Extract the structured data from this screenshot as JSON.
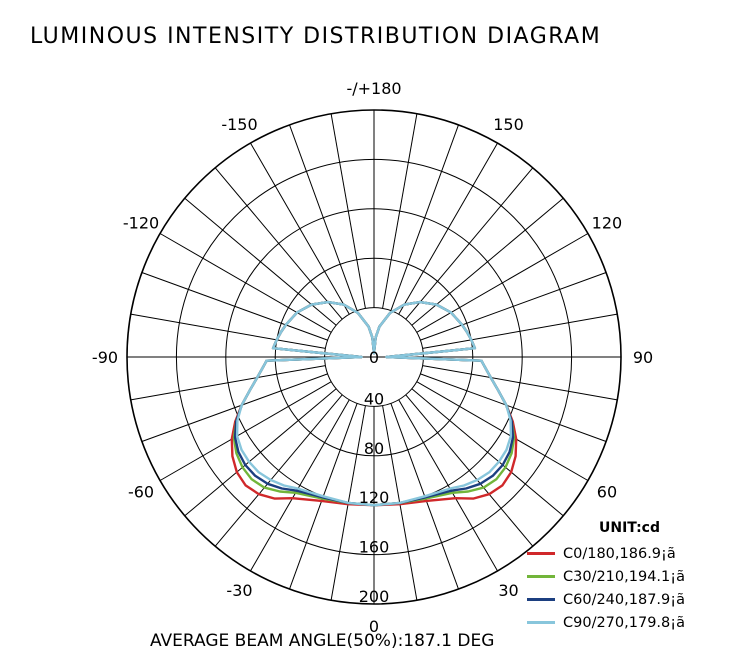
{
  "chart_data": {
    "type": "polar-line",
    "title": "LUMINOUS INTENSITY DISTRIBUTION DIAGRAM",
    "unit_label": "UNIT:cd",
    "angle_labels": [
      "-/+180",
      "150",
      "120",
      "90",
      "60",
      "30",
      "0",
      "-30",
      "-60",
      "-90",
      "-120",
      "-150"
    ],
    "angle_label_values": [
      180,
      150,
      120,
      90,
      60,
      30,
      0,
      -30,
      -60,
      -90,
      -120,
      -150
    ],
    "radial_ticks": [
      0,
      40,
      80,
      120,
      160,
      200
    ],
    "radial_tick_labels": [
      "0",
      "40",
      "80",
      "120",
      "160",
      "200"
    ],
    "rmax": 200,
    "grid": true,
    "legend_position": "bottom-right",
    "series": [
      {
        "name": "C0/180,186.9¡ã",
        "color": "#d0282a",
        "angles": [
          0,
          10,
          20,
          30,
          35,
          40,
          45,
          50,
          55,
          60,
          65,
          70,
          75,
          80,
          85,
          88,
          90,
          95,
          100,
          105,
          110,
          120,
          130,
          140,
          150,
          160,
          170,
          175,
          180
        ],
        "values": [
          120,
          121,
          124,
          132,
          140,
          145,
          147,
          145,
          140,
          133,
          124,
          114,
          104,
          96,
          90,
          87,
          10,
          82,
          80,
          78,
          76,
          72,
          66,
          58,
          49,
          38,
          25,
          16,
          3
        ]
      },
      {
        "name": "C30/210,194.1¡ã",
        "color": "#72b53a",
        "angles": [
          0,
          10,
          20,
          30,
          35,
          40,
          45,
          50,
          55,
          60,
          65,
          70,
          75,
          80,
          85,
          88,
          90,
          95,
          100,
          105,
          110,
          120,
          130,
          140,
          150,
          160,
          170,
          175,
          180
        ],
        "values": [
          120,
          120,
          122,
          127,
          133,
          138,
          140,
          139,
          136,
          131,
          123,
          114,
          104,
          96,
          90,
          87,
          10,
          82,
          80,
          78,
          76,
          72,
          66,
          58,
          49,
          38,
          25,
          16,
          3
        ]
      },
      {
        "name": "C60/240,187.9¡ã",
        "color": "#1c3f80",
        "angles": [
          0,
          10,
          20,
          30,
          35,
          40,
          45,
          50,
          55,
          60,
          65,
          70,
          75,
          80,
          85,
          88,
          90,
          95,
          100,
          105,
          110,
          120,
          130,
          140,
          150,
          160,
          170,
          175,
          180
        ],
        "values": [
          120,
          120,
          121,
          125,
          130,
          134,
          136,
          136,
          134,
          130,
          123,
          114,
          104,
          96,
          90,
          87,
          10,
          82,
          80,
          78,
          76,
          72,
          66,
          58,
          49,
          38,
          25,
          16,
          3
        ]
      },
      {
        "name": "C90/270,179.8¡ã",
        "color": "#88c6dc",
        "angles": [
          0,
          10,
          20,
          30,
          35,
          40,
          45,
          50,
          55,
          60,
          65,
          70,
          75,
          80,
          85,
          88,
          90,
          95,
          100,
          105,
          110,
          120,
          130,
          140,
          150,
          160,
          170,
          175,
          180
        ],
        "values": [
          120,
          120,
          120,
          123,
          127,
          130,
          132,
          132,
          131,
          128,
          122,
          114,
          104,
          96,
          90,
          87,
          10,
          82,
          80,
          78,
          76,
          72,
          66,
          58,
          49,
          38,
          25,
          16,
          3
        ]
      }
    ],
    "footer": "AVERAGE BEAM ANGLE(50%):187.1 DEG"
  }
}
